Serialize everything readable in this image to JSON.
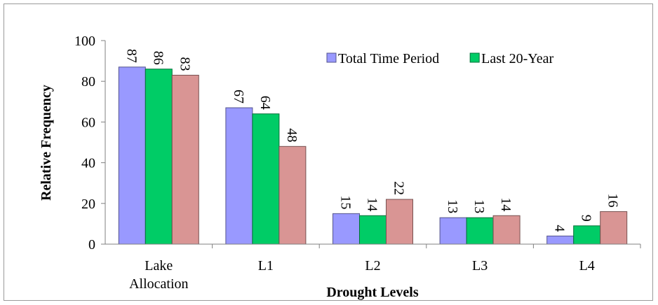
{
  "chart_data": {
    "type": "bar",
    "title": "",
    "xlabel": "Drought Levels",
    "ylabel": "Relative  Frequency",
    "ylim": [
      0,
      100
    ],
    "yticks": [
      0,
      20,
      40,
      60,
      80,
      100
    ],
    "categories": [
      [
        "Lake",
        "Allocation"
      ],
      [
        "L1"
      ],
      [
        "L2"
      ],
      [
        "L3"
      ],
      [
        "L4"
      ]
    ],
    "series": [
      {
        "name": "Total Time Period",
        "color": "#9999ff",
        "values": [
          87,
          67,
          15,
          13,
          4
        ]
      },
      {
        "name": "Last 20-Year",
        "color": "#00cc66",
        "values": [
          86,
          64,
          14,
          13,
          9
        ]
      },
      {
        "name": "",
        "color": "#d99594",
        "values": [
          83,
          48,
          22,
          14,
          16
        ]
      }
    ],
    "grid": false,
    "legend_position": "top-right"
  }
}
